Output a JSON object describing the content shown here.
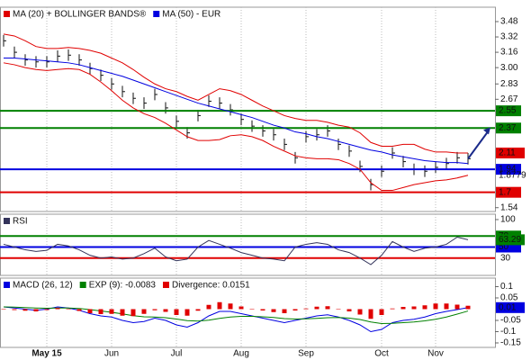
{
  "chart_data": [
    {
      "type": "ohlc",
      "close": [
        3.28,
        3.16,
        3.08,
        3.06,
        3.06,
        3.12,
        3.13,
        3.08,
        2.99,
        2.92,
        2.83,
        2.75,
        2.68,
        2.63,
        2.72,
        2.58,
        2.44,
        2.32,
        2.5,
        2.65,
        2.63,
        2.56,
        2.46,
        2.39,
        2.34,
        2.3,
        2.2,
        2.06,
        2.28,
        2.3,
        2.34,
        2.2,
        2.13,
        1.97,
        1.78,
        1.92,
        2.11,
        2.02,
        1.94,
        1.92,
        1.96,
        2,
        2.06,
        2.05
      ],
      "high": [
        3.34,
        3.22,
        3.14,
        3.12,
        3.12,
        3.18,
        3.19,
        3.14,
        3.05,
        2.98,
        2.89,
        2.81,
        2.74,
        2.69,
        2.78,
        2.64,
        2.5,
        2.38,
        2.56,
        2.71,
        2.69,
        2.62,
        2.52,
        2.45,
        2.4,
        2.36,
        2.26,
        2.12,
        2.34,
        2.36,
        2.4,
        2.26,
        2.19,
        2.03,
        1.84,
        1.98,
        2.17,
        2.08,
        2,
        1.98,
        2.02,
        2.06,
        2.12,
        2.11
      ],
      "low": [
        3.22,
        3.1,
        3.02,
        3,
        3,
        3.06,
        3.07,
        3.02,
        2.93,
        2.86,
        2.77,
        2.69,
        2.62,
        2.57,
        2.66,
        2.52,
        2.38,
        2.26,
        2.44,
        2.59,
        2.57,
        2.5,
        2.4,
        2.33,
        2.28,
        2.24,
        2.14,
        2,
        2.22,
        2.24,
        2.28,
        2.14,
        2.07,
        1.91,
        1.72,
        1.86,
        2.05,
        1.96,
        1.88,
        1.86,
        1.9,
        1.94,
        2,
        1.99
      ],
      "series": [
        {
          "name": "MA (20) + BOLLINGER BANDS®",
          "color": "#e00000",
          "last_label": {
            "style": "box",
            "color": "#e00000"
          },
          "values": [
            3.35,
            3.33,
            3.28,
            3.22,
            3.2,
            3.2,
            3.21,
            3.2,
            3.18,
            3.15,
            3.1,
            3.05,
            2.98,
            2.9,
            2.83,
            2.78,
            2.75,
            2.7,
            2.66,
            2.72,
            2.78,
            2.76,
            2.72,
            2.66,
            2.6,
            2.55,
            2.5,
            2.47,
            2.45,
            2.45,
            2.43,
            2.4,
            2.38,
            2.32,
            2.22,
            2.18,
            2.18,
            2.2,
            2.2,
            2.15,
            2.12,
            2.12,
            2.11,
            2.11
          ]
        },
        {
          "color": "#e00000",
          "last_label": {
            "style": "text",
            "color": "#e00000"
          },
          "values": [
            3.05,
            3.03,
            3,
            2.98,
            2.97,
            2.98,
            2.99,
            2.98,
            2.93,
            2.85,
            2.76,
            2.66,
            2.58,
            2.52,
            2.48,
            2.42,
            2.35,
            2.28,
            2.24,
            2.24,
            2.25,
            2.29,
            2.3,
            2.28,
            2.24,
            2.18,
            2.13,
            2.08,
            2.06,
            2.05,
            2.05,
            2.04,
            2,
            1.94,
            1.8,
            1.72,
            1.72,
            1.75,
            1.78,
            1.8,
            1.82,
            1.83,
            1.85,
            1.8779
          ]
        },
        {
          "name": "MA (50) - EUR",
          "color": "#0000e0",
          "values": [
            3.1,
            3.1,
            3.09,
            3.08,
            3.07,
            3.06,
            3.05,
            3.03,
            3,
            2.97,
            2.94,
            2.91,
            2.87,
            2.83,
            2.79,
            2.75,
            2.71,
            2.67,
            2.63,
            2.6,
            2.57,
            2.54,
            2.51,
            2.48,
            2.44,
            2.4,
            2.37,
            2.33,
            2.31,
            2.28,
            2.26,
            2.23,
            2.2,
            2.17,
            2.14,
            2.12,
            2.09,
            2.07,
            2.05,
            2.03,
            2.02,
            2.01,
            2.01,
            2
          ]
        }
      ],
      "levels": [
        {
          "value": 2.55,
          "color": "#008000"
        },
        {
          "value": 2.37,
          "color": "#008000"
        },
        {
          "value": 1.94,
          "color": "#0000e0"
        },
        {
          "value": 1.7,
          "color": "#e00000"
        }
      ],
      "ylim": [
        1.5,
        3.63
      ],
      "yticks": [
        3.48,
        3.32,
        3.16,
        {
          "value": 3,
          "label": "3.00"
        },
        2.83,
        2.67,
        1.54
      ]
    },
    {
      "type": "line",
      "series": [
        {
          "name": "RSI",
          "color": "#33335a",
          "last_label": {
            "style": "box",
            "color": "#008000"
          },
          "values": [
            55,
            50,
            45,
            42,
            44,
            55,
            52,
            45,
            35,
            30,
            32,
            28,
            30,
            38,
            48,
            32,
            25,
            28,
            50,
            62,
            55,
            48,
            40,
            35,
            30,
            28,
            25,
            50,
            55,
            58,
            55,
            45,
            40,
            30,
            18,
            35,
            60,
            50,
            42,
            48,
            50,
            55,
            68,
            63.29
          ]
        }
      ],
      "levels": [
        {
          "value": 70,
          "color": "#008000"
        },
        {
          "value": 50,
          "color": "#0000e0"
        },
        {
          "value": 30,
          "color": "#e00000",
          "style": "text"
        }
      ],
      "ylim": [
        -1.6,
        109.8
      ],
      "yticks": [
        100
      ]
    },
    {
      "type": "line",
      "categories": [
        null,
        null,
        null,
        null,
        "May 15",
        null,
        null,
        null,
        null,
        null,
        "Jun",
        null,
        null,
        null,
        null,
        null,
        "Jul",
        null,
        null,
        null,
        null,
        null,
        "Aug",
        null,
        null,
        null,
        null,
        null,
        "Sep",
        null,
        null,
        null,
        null,
        null,
        null,
        "Oct",
        null,
        null,
        null,
        null,
        "Nov",
        null,
        null,
        null
      ],
      "series": [
        {
          "name": "MACD (26, 12)",
          "color": "#0000e0",
          "last_label": {
            "style": "box",
            "color": "#0000e0"
          },
          "values": [
            0.01,
            0.005,
            0,
            -0.005,
            0,
            0.01,
            0.005,
            -0.005,
            -0.02,
            -0.03,
            -0.035,
            -0.05,
            -0.06,
            -0.055,
            -0.04,
            -0.05,
            -0.07,
            -0.08,
            -0.06,
            -0.03,
            -0.01,
            -0.01,
            -0.02,
            -0.03,
            -0.04,
            -0.05,
            -0.06,
            -0.05,
            -0.04,
            -0.03,
            -0.025,
            -0.035,
            -0.05,
            -0.07,
            -0.1,
            -0.09,
            -0.06,
            -0.05,
            -0.045,
            -0.035,
            -0.02,
            -0.01,
            -0.002,
            0.0068
          ],
          "value_labels": [
            null,
            null,
            null,
            null,
            null,
            null,
            null,
            null,
            null,
            null,
            null,
            null,
            null,
            null,
            null,
            null,
            null,
            null,
            null,
            null,
            null,
            null,
            null,
            null,
            null,
            null,
            null,
            null,
            null,
            null,
            null,
            null,
            null,
            null,
            null,
            null,
            null,
            null,
            null,
            null,
            null,
            null,
            null,
            "0.01"
          ]
        },
        {
          "name": "EXP (9): -0.0083",
          "color": "#008000",
          "values": [
            0.01,
            0.009,
            0.007,
            0.005,
            0.004,
            0.005,
            0.005,
            0.003,
            -0.002,
            -0.008,
            -0.014,
            -0.021,
            -0.029,
            -0.034,
            -0.035,
            -0.038,
            -0.044,
            -0.051,
            -0.053,
            -0.049,
            -0.041,
            -0.035,
            -0.032,
            -0.032,
            -0.034,
            -0.037,
            -0.042,
            -0.044,
            -0.043,
            -0.041,
            -0.038,
            -0.037,
            -0.04,
            -0.046,
            -0.057,
            -0.064,
            -0.063,
            -0.06,
            -0.057,
            -0.052,
            -0.045,
            -0.035,
            -0.022,
            -0.0083
          ]
        },
        {
          "name": "Divergence: 0.0151",
          "color": "#e00000",
          "kind": "bar",
          "values": [
            0,
            -0.004,
            -0.007,
            -0.01,
            -0.004,
            0.005,
            0,
            -0.008,
            -0.018,
            -0.022,
            -0.021,
            -0.029,
            -0.031,
            -0.021,
            -0.005,
            -0.012,
            -0.026,
            -0.029,
            -0.007,
            0.019,
            0.031,
            0.025,
            0.012,
            0.002,
            -0.006,
            -0.013,
            -0.018,
            -0.006,
            0.003,
            0.011,
            0.013,
            0.002,
            -0.01,
            -0.024,
            -0.043,
            -0.026,
            0.003,
            0.01,
            0.012,
            0.017,
            0.025,
            0.025,
            0.02,
            0.0151
          ]
        }
      ],
      "ylim": [
        -0.17,
        0.138
      ],
      "yticks": [
        0.1,
        0.05,
        -0.05,
        -0.1,
        -0.15
      ]
    }
  ]
}
